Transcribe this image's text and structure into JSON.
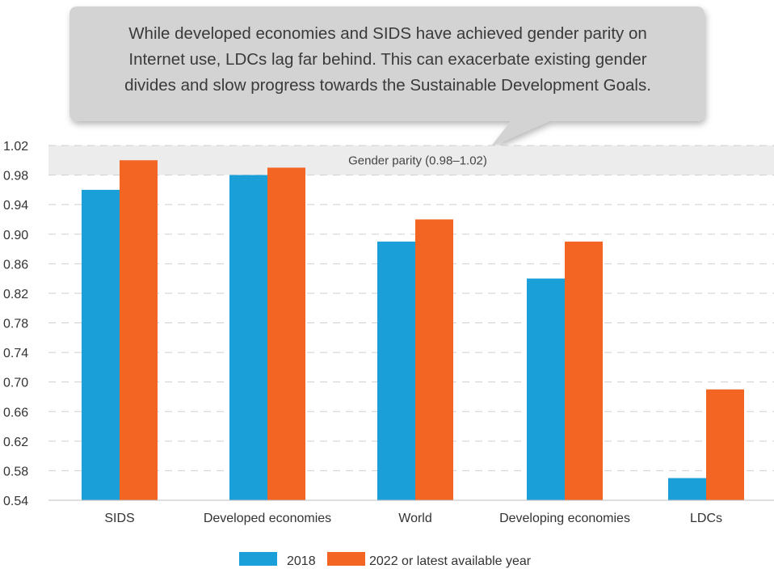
{
  "callout": {
    "lines": [
      "While developed economies and SIDS have achieved gender parity on",
      "Internet use, LDCs lag far behind. This can exacerbate existing gender",
      "divides and slow progress towards the Sustainable Development Goals."
    ]
  },
  "chart_data": {
    "type": "bar",
    "categories": [
      "SIDS",
      "Developed economies",
      "World",
      "Developing economies",
      "LDCs"
    ],
    "series": [
      {
        "name": "2018",
        "color": "#1a9fd9",
        "values": [
          0.96,
          0.98,
          0.89,
          0.84,
          0.57
        ]
      },
      {
        "name": "2022 or latest available year",
        "color": "#f26522",
        "values": [
          1.0,
          0.99,
          0.92,
          0.89,
          0.69
        ]
      }
    ],
    "ylim": [
      0.54,
      1.02
    ],
    "yticks": [
      "1.02",
      "0.98",
      "0.94",
      "0.90",
      "0.86",
      "0.82",
      "0.78",
      "0.74",
      "0.70",
      "0.66",
      "0.62",
      "0.58",
      "0.54"
    ],
    "grid": true,
    "parity_band": {
      "from": 0.98,
      "to": 1.02,
      "label": "Gender parity (0.98–1.02)"
    },
    "legend": "bottom-center"
  }
}
